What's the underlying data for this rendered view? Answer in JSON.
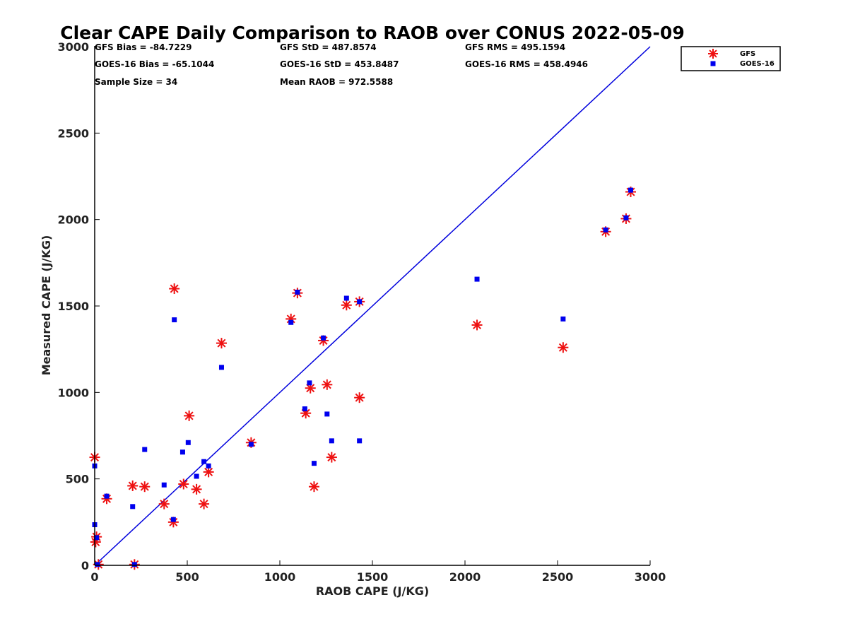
{
  "chart_data": {
    "type": "scatter",
    "title": "Clear CAPE Daily Comparison to RAOB over CONUS 2022-05-09",
    "xlabel": "RAOB CAPE (J/KG)",
    "ylabel": "Measured CAPE (J/KG)",
    "xlim": [
      0,
      3000
    ],
    "ylim": [
      0,
      3000
    ],
    "xticks": [
      0,
      500,
      1000,
      1500,
      2000,
      2500,
      3000
    ],
    "yticks": [
      0,
      500,
      1000,
      1500,
      2000,
      2500,
      3000
    ],
    "grid": false,
    "legend_position": "top-right",
    "reference_line": {
      "name": "1:1",
      "x": [
        0,
        3000
      ],
      "y": [
        0,
        3000
      ],
      "color": "#0000dd"
    },
    "stats": [
      [
        "GFS Bias = -84.7229",
        "GFS StD = 487.8574",
        "GFS RMS = 495.1594"
      ],
      [
        "GOES-16 Bias = -65.1044",
        "GOES-16 StD = 453.8487",
        "GOES-16 RMS = 458.4946"
      ],
      [
        "Sample Size = 34",
        "Mean RAOB = 972.5588",
        ""
      ]
    ],
    "series": [
      {
        "name": "GFS",
        "marker": "asterisk",
        "color": "#ee1111",
        "points": [
          [
            0,
            625
          ],
          [
            5,
            135
          ],
          [
            10,
            165
          ],
          [
            20,
            5
          ],
          [
            65,
            385
          ],
          [
            205,
            460
          ],
          [
            215,
            5
          ],
          [
            270,
            455
          ],
          [
            375,
            355
          ],
          [
            425,
            250
          ],
          [
            430,
            1600
          ],
          [
            480,
            470
          ],
          [
            510,
            865
          ],
          [
            550,
            440
          ],
          [
            590,
            355
          ],
          [
            615,
            540
          ],
          [
            685,
            1285
          ],
          [
            845,
            710
          ],
          [
            1060,
            1425
          ],
          [
            1095,
            1575
          ],
          [
            1140,
            880
          ],
          [
            1165,
            1025
          ],
          [
            1185,
            455
          ],
          [
            1235,
            1300
          ],
          [
            1255,
            1045
          ],
          [
            1280,
            625
          ],
          [
            1360,
            1505
          ],
          [
            1430,
            1525
          ],
          [
            1430,
            970
          ],
          [
            2065,
            1390
          ],
          [
            2530,
            1260
          ],
          [
            2760,
            1930
          ],
          [
            2870,
            2005
          ],
          [
            2895,
            2160
          ]
        ]
      },
      {
        "name": "GOES-16",
        "marker": "square",
        "color": "#0000ee",
        "points": [
          [
            0,
            575
          ],
          [
            0,
            235
          ],
          [
            10,
            160
          ],
          [
            15,
            5
          ],
          [
            65,
            400
          ],
          [
            205,
            340
          ],
          [
            215,
            5
          ],
          [
            270,
            670
          ],
          [
            375,
            465
          ],
          [
            425,
            265
          ],
          [
            430,
            1420
          ],
          [
            475,
            655
          ],
          [
            505,
            710
          ],
          [
            550,
            515
          ],
          [
            590,
            600
          ],
          [
            615,
            575
          ],
          [
            685,
            1145
          ],
          [
            845,
            700
          ],
          [
            1060,
            1405
          ],
          [
            1095,
            1580
          ],
          [
            1135,
            905
          ],
          [
            1160,
            1055
          ],
          [
            1185,
            590
          ],
          [
            1235,
            1315
          ],
          [
            1255,
            875
          ],
          [
            1280,
            720
          ],
          [
            1360,
            1545
          ],
          [
            1430,
            1525
          ],
          [
            1430,
            720
          ],
          [
            2065,
            1655
          ],
          [
            2530,
            1425
          ],
          [
            2760,
            1940
          ],
          [
            2870,
            2010
          ],
          [
            2895,
            2170
          ]
        ]
      }
    ]
  }
}
